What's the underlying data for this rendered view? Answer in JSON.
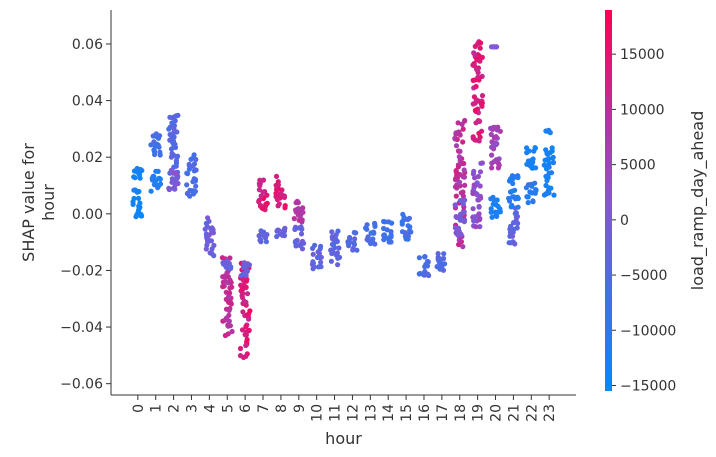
{
  "chart_data": {
    "type": "scatter",
    "title": "",
    "xlabel": "hour",
    "ylabel": "SHAP value for\nhour",
    "xlim": [
      -1.5,
      24.5
    ],
    "ylim": [
      -0.064,
      0.072
    ],
    "x_ticks": [
      0,
      1,
      2,
      3,
      4,
      5,
      6,
      7,
      8,
      9,
      10,
      11,
      12,
      13,
      14,
      15,
      16,
      17,
      18,
      19,
      20,
      21,
      22,
      23
    ],
    "y_ticks": [
      -0.06,
      -0.04,
      -0.02,
      0.0,
      0.02,
      0.04,
      0.06
    ],
    "y_tick_labels": [
      "−0.06",
      "−0.04",
      "−0.02",
      "0.00",
      "0.02",
      "0.04",
      "0.06"
    ],
    "grid": false,
    "colorbar": {
      "label": "load_ramp_day_ahead",
      "range": [
        -15500,
        19000
      ],
      "ticks": [
        -15000,
        -10000,
        -5000,
        0,
        5000,
        10000,
        15000
      ],
      "tick_labels": [
        "−15000",
        "−10000",
        "−5000",
        "0",
        "5000",
        "10000",
        "15000"
      ],
      "colormap": [
        "#008afb",
        "#ff0052"
      ]
    },
    "groups": [
      {
        "hour": 0,
        "clusters": [
          {
            "y": [
              -0.001,
              0.016
            ],
            "c": [
              -15000,
              -12000
            ]
          }
        ]
      },
      {
        "hour": 1,
        "clusters": [
          {
            "y": [
              0.008,
              0.016
            ],
            "c": [
              -13000,
              -9000
            ]
          },
          {
            "y": [
              0.02,
              0.029
            ],
            "c": [
              -9000,
              -5000
            ]
          }
        ]
      },
      {
        "hour": 2,
        "clusters": [
          {
            "y": [
              0.012,
              0.035
            ],
            "c": [
              -6000,
              -3000
            ]
          },
          {
            "y": [
              0.008,
              0.016
            ],
            "c": [
              -1000,
              3000
            ]
          }
        ]
      },
      {
        "hour": 3,
        "clusters": [
          {
            "y": [
              0.006,
              0.021
            ],
            "c": [
              -8000,
              -4000
            ]
          }
        ]
      },
      {
        "hour": 4,
        "clusters": [
          {
            "y": [
              -0.015,
              -0.001
            ],
            "c": [
              -4000,
              1000
            ]
          }
        ]
      },
      {
        "hour": 5,
        "clusters": [
          {
            "y": [
              -0.044,
              -0.015
            ],
            "c": [
              7000,
              12000
            ]
          },
          {
            "y": [
              -0.02,
              -0.016
            ],
            "c": [
              -4000,
              -1000
            ]
          }
        ]
      },
      {
        "hour": 6,
        "clusters": [
          {
            "y": [
              -0.052,
              -0.016
            ],
            "c": [
              10000,
              17000
            ]
          },
          {
            "y": [
              -0.022,
              -0.017
            ],
            "c": [
              -3000,
              0
            ]
          }
        ]
      },
      {
        "hour": 7,
        "clusters": [
          {
            "y": [
              0.001,
              0.013
            ],
            "c": [
              10000,
              17000
            ]
          },
          {
            "y": [
              -0.01,
              -0.006
            ],
            "c": [
              -5000,
              -2000
            ]
          }
        ]
      },
      {
        "hour": 8,
        "clusters": [
          {
            "y": [
              0.002,
              0.014
            ],
            "c": [
              11000,
              17000
            ]
          },
          {
            "y": [
              -0.009,
              -0.005
            ],
            "c": [
              -4000,
              -1000
            ]
          }
        ]
      },
      {
        "hour": 9,
        "clusters": [
          {
            "y": [
              -0.013,
              -0.004
            ],
            "c": [
              -4000,
              0
            ]
          },
          {
            "y": [
              -0.004,
              0.005
            ],
            "c": [
              7000,
              10000
            ]
          }
        ]
      },
      {
        "hour": 10,
        "clusters": [
          {
            "y": [
              -0.02,
              -0.011
            ],
            "c": [
              -5000,
              -1000
            ]
          }
        ]
      },
      {
        "hour": 11,
        "clusters": [
          {
            "y": [
              -0.018,
              -0.006
            ],
            "c": [
              -6000,
              -2000
            ]
          }
        ]
      },
      {
        "hour": 12,
        "clusters": [
          {
            "y": [
              -0.013,
              -0.006
            ],
            "c": [
              -6000,
              -2000
            ]
          }
        ]
      },
      {
        "hour": 13,
        "clusters": [
          {
            "y": [
              -0.011,
              -0.003
            ],
            "c": [
              -8000,
              -4000
            ]
          }
        ]
      },
      {
        "hour": 14,
        "clusters": [
          {
            "y": [
              -0.01,
              -0.002
            ],
            "c": [
              -10000,
              -6000
            ]
          }
        ]
      },
      {
        "hour": 15,
        "clusters": [
          {
            "y": [
              -0.01,
              0.0
            ],
            "c": [
              -9000,
              -5000
            ]
          }
        ]
      },
      {
        "hour": 16,
        "clusters": [
          {
            "y": [
              -0.022,
              -0.015
            ],
            "c": [
              -8000,
              -4000
            ]
          }
        ]
      },
      {
        "hour": 17,
        "clusters": [
          {
            "y": [
              -0.021,
              -0.014
            ],
            "c": [
              -7000,
              -3000
            ]
          }
        ]
      },
      {
        "hour": 18,
        "clusters": [
          {
            "y": [
              -0.012,
              0.033
            ],
            "c": [
              5000,
              13000
            ]
          },
          {
            "y": [
              -0.008,
              0.005
            ],
            "c": [
              -3000,
              1000
            ]
          }
        ]
      },
      {
        "hour": 19,
        "clusters": [
          {
            "y": [
              0.025,
              0.061
            ],
            "c": [
              10000,
              17000
            ]
          },
          {
            "y": [
              -0.005,
              0.018
            ],
            "c": [
              0,
              6000
            ]
          }
        ]
      },
      {
        "hour": 20,
        "clusters": [
          {
            "y": [
              0.015,
              0.031
            ],
            "c": [
              2000,
              8000
            ]
          },
          {
            "y": [
              -0.002,
              0.006
            ],
            "c": [
              -14000,
              -10000
            ]
          },
          {
            "y": [
              0.059,
              0.059
            ],
            "c": [
              1500,
              1500
            ]
          }
        ]
      },
      {
        "hour": 21,
        "clusters": [
          {
            "y": [
              -0.011,
              0.003
            ],
            "c": [
              -6000,
              0
            ]
          },
          {
            "y": [
              0.002,
              0.014
            ],
            "c": [
              -13000,
              -9000
            ]
          }
        ]
      },
      {
        "hour": 22,
        "clusters": [
          {
            "y": [
              0.016,
              0.024
            ],
            "c": [
              -14000,
              -11000
            ]
          },
          {
            "y": [
              0.003,
              0.011
            ],
            "c": [
              -12000,
              -8000
            ]
          }
        ]
      },
      {
        "hour": 23,
        "clusters": [
          {
            "y": [
              0.006,
              0.03
            ],
            "c": [
              -14000,
              -11000
            ]
          }
        ]
      }
    ]
  }
}
